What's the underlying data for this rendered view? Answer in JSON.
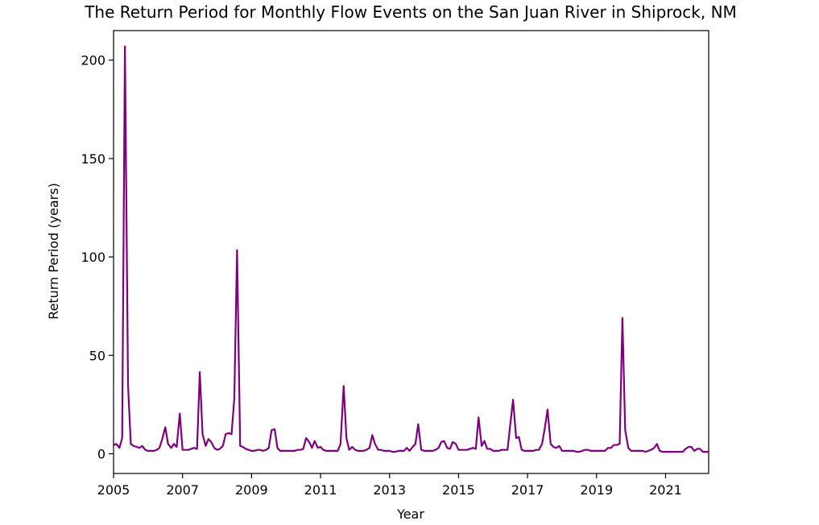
{
  "chart_data": {
    "type": "line",
    "title": "The Return Period for Monthly Flow Events on the San Juan River in Shiprock, NM",
    "xlabel": "Year",
    "ylabel": "Return Period (years)",
    "xlim": [
      2005.0,
      2022.25
    ],
    "ylim": [
      -10,
      215
    ],
    "xticks": [
      "2005",
      "2007",
      "2009",
      "2011",
      "2013",
      "2015",
      "2017",
      "2019",
      "2021"
    ],
    "yticks": [
      "0",
      "50",
      "100",
      "150",
      "200"
    ],
    "grid": false,
    "legend": "none",
    "line_color": "#800080",
    "series": [
      {
        "x": [
          2005.0,
          2005.08,
          2005.17,
          2005.25,
          2005.33,
          2005.42,
          2005.5,
          2005.58,
          2005.67,
          2005.75,
          2005.83,
          2005.92,
          2006.0,
          2006.08,
          2006.17,
          2006.25,
          2006.33,
          2006.42,
          2006.5,
          2006.58,
          2006.67,
          2006.75,
          2006.83,
          2006.92,
          2007.0,
          2007.08,
          2007.17,
          2007.25,
          2007.33,
          2007.42,
          2007.5,
          2007.58,
          2007.67,
          2007.75,
          2007.83,
          2007.92,
          2008.0,
          2008.08,
          2008.17,
          2008.25,
          2008.33,
          2008.42,
          2008.5,
          2008.58,
          2008.67,
          2008.75,
          2008.83,
          2008.92,
          2009.0,
          2009.08,
          2009.17,
          2009.25,
          2009.33,
          2009.42,
          2009.5,
          2009.58,
          2009.67,
          2009.75,
          2009.83,
          2009.92,
          2010.0,
          2010.08,
          2010.17,
          2010.25,
          2010.33,
          2010.42,
          2010.5,
          2010.58,
          2010.67,
          2010.75,
          2010.83,
          2010.92,
          2011.0,
          2011.08,
          2011.17,
          2011.25,
          2011.33,
          2011.42,
          2011.5,
          2011.58,
          2011.67,
          2011.75,
          2011.83,
          2011.92,
          2012.0,
          2012.08,
          2012.17,
          2012.25,
          2012.33,
          2012.42,
          2012.5,
          2012.58,
          2012.67,
          2012.75,
          2012.83,
          2012.92,
          2013.0,
          2013.08,
          2013.17,
          2013.25,
          2013.33,
          2013.42,
          2013.5,
          2013.58,
          2013.67,
          2013.75,
          2013.83,
          2013.92,
          2014.0,
          2014.08,
          2014.17,
          2014.25,
          2014.33,
          2014.42,
          2014.5,
          2014.58,
          2014.67,
          2014.75,
          2014.83,
          2014.92,
          2015.0,
          2015.08,
          2015.17,
          2015.25,
          2015.33,
          2015.42,
          2015.5,
          2015.58,
          2015.67,
          2015.75,
          2015.83,
          2015.92,
          2016.0,
          2016.08,
          2016.17,
          2016.25,
          2016.33,
          2016.42,
          2016.5,
          2016.58,
          2016.67,
          2016.75,
          2016.83,
          2016.92,
          2017.0,
          2017.08,
          2017.17,
          2017.25,
          2017.33,
          2017.42,
          2017.5,
          2017.58,
          2017.67,
          2017.75,
          2017.83,
          2017.92,
          2018.0,
          2018.08,
          2018.17,
          2018.25,
          2018.33,
          2018.42,
          2018.5,
          2018.58,
          2018.67,
          2018.75,
          2018.83,
          2018.92,
          2019.0,
          2019.08,
          2019.17,
          2019.25,
          2019.33,
          2019.42,
          2019.5,
          2019.58,
          2019.67,
          2019.75,
          2019.83,
          2019.92,
          2020.0,
          2020.08,
          2020.17,
          2020.25,
          2020.33,
          2020.42,
          2020.5,
          2020.58,
          2020.67,
          2020.75,
          2020.83,
          2020.92,
          2021.0,
          2021.08,
          2021.17,
          2021.25,
          2021.33,
          2021.42,
          2021.5,
          2021.58,
          2021.67,
          2021.75,
          2021.83,
          2021.92,
          2022.0,
          2022.08,
          2022.17,
          2022.25
        ],
        "y": [
          4.5,
          5.0,
          3.0,
          8.0,
          207.0,
          35.0,
          5.0,
          4.0,
          3.5,
          3.0,
          4.0,
          2.0,
          1.5,
          1.5,
          1.5,
          2.0,
          3.0,
          8.0,
          13.5,
          5.0,
          3.0,
          5.0,
          3.5,
          20.5,
          2.0,
          2.0,
          2.0,
          2.5,
          3.0,
          2.5,
          41.5,
          10.0,
          4.0,
          7.5,
          6.0,
          3.0,
          2.0,
          2.5,
          4.0,
          10.0,
          10.5,
          10.0,
          28.0,
          103.5,
          4.0,
          3.5,
          2.5,
          2.0,
          1.5,
          1.5,
          2.0,
          2.0,
          1.5,
          2.0,
          3.0,
          12.0,
          12.5,
          3.0,
          1.5,
          1.5,
          1.5,
          1.5,
          1.5,
          1.5,
          2.0,
          2.0,
          2.5,
          8.0,
          6.0,
          3.0,
          6.5,
          3.0,
          3.5,
          2.0,
          1.5,
          1.5,
          1.5,
          1.5,
          1.5,
          5.0,
          34.5,
          8.0,
          2.0,
          3.5,
          2.0,
          1.5,
          1.5,
          1.5,
          2.0,
          3.0,
          9.5,
          5.0,
          2.0,
          2.0,
          1.5,
          1.5,
          1.5,
          1.0,
          1.0,
          1.5,
          1.5,
          1.5,
          3.0,
          1.5,
          3.5,
          5.0,
          15.0,
          2.0,
          1.5,
          1.5,
          1.5,
          1.5,
          2.0,
          3.0,
          6.0,
          6.5,
          3.0,
          2.5,
          6.0,
          5.0,
          2.0,
          2.0,
          2.0,
          2.0,
          2.5,
          3.0,
          2.5,
          18.5,
          4.0,
          6.5,
          2.5,
          2.5,
          1.5,
          1.5,
          1.5,
          2.0,
          2.0,
          2.0,
          15.0,
          27.5,
          8.0,
          8.5,
          2.0,
          1.5,
          1.5,
          1.5,
          1.5,
          2.0,
          2.0,
          5.0,
          13.0,
          22.5,
          5.0,
          3.5,
          3.0,
          4.0,
          1.5,
          1.5,
          1.5,
          1.5,
          1.5,
          1.0,
          1.0,
          1.5,
          2.0,
          2.0,
          1.5,
          1.5,
          1.5,
          1.5,
          1.5,
          1.5,
          3.0,
          3.0,
          4.5,
          4.5,
          5.0,
          69.0,
          12.0,
          3.0,
          1.5,
          1.5,
          1.5,
          1.5,
          1.5,
          1.0,
          1.5,
          2.0,
          3.0,
          5.0,
          1.5,
          1.0,
          1.0,
          1.0,
          1.0,
          1.0,
          1.0,
          1.0,
          1.0,
          2.5,
          3.5,
          3.5,
          1.5,
          2.5,
          2.5,
          1.0,
          1.0,
          1.0
        ]
      }
    ]
  }
}
